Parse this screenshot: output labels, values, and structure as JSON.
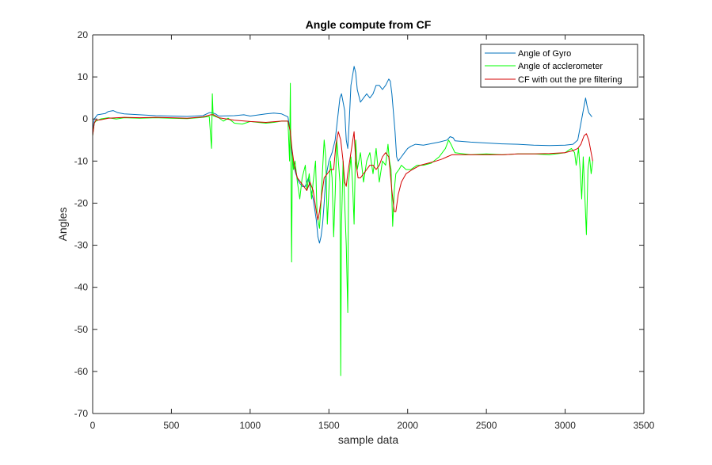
{
  "chart_data": {
    "type": "line",
    "title": "Angle compute from CF",
    "xlabel": "sample data",
    "ylabel": "Angles",
    "xlim": [
      0,
      3500
    ],
    "ylim": [
      -70,
      20
    ],
    "xticks": [
      0,
      500,
      1000,
      1500,
      2000,
      2500,
      3000,
      3500
    ],
    "yticks": [
      20,
      10,
      0,
      -10,
      -20,
      -30,
      -40,
      -50,
      -60,
      -70
    ],
    "grid": false,
    "legend_position": "top-right",
    "series": [
      {
        "name": "Angle of Gyro",
        "color": "#0072BD",
        "points": [
          [
            0,
            -3
          ],
          [
            10,
            0
          ],
          [
            30,
            1
          ],
          [
            80,
            1.3
          ],
          [
            100,
            1.8
          ],
          [
            130,
            2
          ],
          [
            160,
            1.5
          ],
          [
            200,
            1.2
          ],
          [
            300,
            1
          ],
          [
            400,
            0.8
          ],
          [
            500,
            0.7
          ],
          [
            600,
            0.6
          ],
          [
            700,
            0.8
          ],
          [
            740,
            1.5
          ],
          [
            760,
            1.5
          ],
          [
            780,
            1.2
          ],
          [
            800,
            0.7
          ],
          [
            900,
            0.8
          ],
          [
            960,
            1
          ],
          [
            1000,
            0.7
          ],
          [
            1100,
            1.2
          ],
          [
            1150,
            1.4
          ],
          [
            1200,
            1.2
          ],
          [
            1240,
            0.5
          ],
          [
            1250,
            -2
          ],
          [
            1260,
            -6
          ],
          [
            1270,
            -10
          ],
          [
            1290,
            -13
          ],
          [
            1310,
            -15
          ],
          [
            1330,
            -16
          ],
          [
            1350,
            -16
          ],
          [
            1370,
            -14
          ],
          [
            1380,
            -16
          ],
          [
            1400,
            -19
          ],
          [
            1420,
            -24
          ],
          [
            1430,
            -28
          ],
          [
            1440,
            -29.5
          ],
          [
            1450,
            -28
          ],
          [
            1460,
            -25
          ],
          [
            1470,
            -20
          ],
          [
            1480,
            -14
          ],
          [
            1500,
            -10
          ],
          [
            1520,
            -8
          ],
          [
            1540,
            -5
          ],
          [
            1555,
            0
          ],
          [
            1570,
            5
          ],
          [
            1580,
            6
          ],
          [
            1590,
            4
          ],
          [
            1600,
            2
          ],
          [
            1610,
            -5
          ],
          [
            1620,
            -7
          ],
          [
            1630,
            0
          ],
          [
            1640,
            8
          ],
          [
            1660,
            12.5
          ],
          [
            1670,
            11
          ],
          [
            1680,
            7
          ],
          [
            1700,
            4
          ],
          [
            1720,
            5
          ],
          [
            1740,
            6
          ],
          [
            1760,
            5
          ],
          [
            1780,
            6
          ],
          [
            1800,
            8
          ],
          [
            1820,
            8
          ],
          [
            1840,
            7
          ],
          [
            1860,
            8
          ],
          [
            1880,
            9.5
          ],
          [
            1890,
            9
          ],
          [
            1900,
            6
          ],
          [
            1920,
            -3
          ],
          [
            1930,
            -9
          ],
          [
            1940,
            -10
          ],
          [
            1960,
            -9
          ],
          [
            1980,
            -8
          ],
          [
            2000,
            -7
          ],
          [
            2020,
            -6.5
          ],
          [
            2050,
            -6
          ],
          [
            2100,
            -6.2
          ],
          [
            2200,
            -5.5
          ],
          [
            2250,
            -5
          ],
          [
            2270,
            -4.2
          ],
          [
            2290,
            -4.5
          ],
          [
            2300,
            -5.2
          ],
          [
            2400,
            -5.5
          ],
          [
            2500,
            -5.7
          ],
          [
            2600,
            -5.9
          ],
          [
            2700,
            -6
          ],
          [
            2800,
            -6.2
          ],
          [
            2900,
            -6.3
          ],
          [
            3000,
            -6.2
          ],
          [
            3050,
            -6
          ],
          [
            3080,
            -5
          ],
          [
            3100,
            -1
          ],
          [
            3120,
            3
          ],
          [
            3130,
            5
          ],
          [
            3140,
            3
          ],
          [
            3150,
            1.5
          ],
          [
            3170,
            0.5
          ]
        ]
      },
      {
        "name": "Angle of acclerometer",
        "color": "#00FF00",
        "points": [
          [
            0,
            -4
          ],
          [
            10,
            -1
          ],
          [
            20,
            -0.5
          ],
          [
            50,
            0
          ],
          [
            100,
            0.3
          ],
          [
            150,
            0
          ],
          [
            200,
            0.3
          ],
          [
            300,
            0.2
          ],
          [
            400,
            0.3
          ],
          [
            500,
            0.2
          ],
          [
            600,
            0.1
          ],
          [
            700,
            0.4
          ],
          [
            740,
            0.6
          ],
          [
            755,
            -7
          ],
          [
            760,
            6
          ],
          [
            765,
            0.8
          ],
          [
            800,
            0.3
          ],
          [
            830,
            -0.5
          ],
          [
            860,
            0.2
          ],
          [
            900,
            -1
          ],
          [
            950,
            -1.2
          ],
          [
            1000,
            -0.6
          ],
          [
            1050,
            -0.8
          ],
          [
            1100,
            -1
          ],
          [
            1150,
            -0.8
          ],
          [
            1200,
            -0.5
          ],
          [
            1240,
            -0.5
          ],
          [
            1250,
            -10
          ],
          [
            1255,
            8.5
          ],
          [
            1258,
            -8
          ],
          [
            1263,
            -34
          ],
          [
            1268,
            -8
          ],
          [
            1275,
            -12
          ],
          [
            1285,
            -10
          ],
          [
            1300,
            -15
          ],
          [
            1315,
            -19
          ],
          [
            1330,
            -14
          ],
          [
            1350,
            -11
          ],
          [
            1360,
            -17
          ],
          [
            1375,
            -13
          ],
          [
            1390,
            -19
          ],
          [
            1400,
            -15
          ],
          [
            1415,
            -10
          ],
          [
            1425,
            -23
          ],
          [
            1440,
            -26
          ],
          [
            1450,
            -20
          ],
          [
            1460,
            -12
          ],
          [
            1470,
            -5
          ],
          [
            1480,
            -9
          ],
          [
            1490,
            -25
          ],
          [
            1500,
            -17
          ],
          [
            1510,
            -10
          ],
          [
            1520,
            -14
          ],
          [
            1530,
            -28
          ],
          [
            1540,
            -18
          ],
          [
            1550,
            -5
          ],
          [
            1560,
            -10
          ],
          [
            1570,
            -15
          ],
          [
            1575,
            -61
          ],
          [
            1580,
            -25
          ],
          [
            1590,
            -10
          ],
          [
            1600,
            -20
          ],
          [
            1610,
            -30
          ],
          [
            1620,
            -46
          ],
          [
            1625,
            -15
          ],
          [
            1640,
            -9
          ],
          [
            1650,
            -15
          ],
          [
            1660,
            -25
          ],
          [
            1670,
            -5
          ],
          [
            1680,
            -12
          ],
          [
            1700,
            -8
          ],
          [
            1720,
            -15
          ],
          [
            1740,
            -10
          ],
          [
            1760,
            -8
          ],
          [
            1780,
            -13
          ],
          [
            1800,
            -7
          ],
          [
            1820,
            -15
          ],
          [
            1840,
            -10
          ],
          [
            1860,
            -11
          ],
          [
            1875,
            -6
          ],
          [
            1885,
            -10
          ],
          [
            1895,
            -12
          ],
          [
            1905,
            -25.5
          ],
          [
            1915,
            -17
          ],
          [
            1925,
            -13
          ],
          [
            1945,
            -12
          ],
          [
            1960,
            -11
          ],
          [
            1990,
            -12
          ],
          [
            2020,
            -12
          ],
          [
            2060,
            -11
          ],
          [
            2100,
            -11
          ],
          [
            2150,
            -10.5
          ],
          [
            2200,
            -9
          ],
          [
            2240,
            -7
          ],
          [
            2260,
            -5
          ],
          [
            2275,
            -6
          ],
          [
            2300,
            -8
          ],
          [
            2400,
            -8.5
          ],
          [
            2500,
            -8.3
          ],
          [
            2600,
            -8.5
          ],
          [
            2700,
            -8.3
          ],
          [
            2800,
            -8.3
          ],
          [
            2900,
            -8.5
          ],
          [
            3000,
            -8
          ],
          [
            3040,
            -7
          ],
          [
            3060,
            -8
          ],
          [
            3070,
            -11
          ],
          [
            3085,
            -7
          ],
          [
            3095,
            -12
          ],
          [
            3105,
            -19
          ],
          [
            3115,
            -9
          ],
          [
            3125,
            -18
          ],
          [
            3135,
            -27.5
          ],
          [
            3145,
            -12
          ],
          [
            3155,
            -9
          ],
          [
            3165,
            -13
          ],
          [
            3175,
            -10
          ]
        ]
      },
      {
        "name": "CF with out the pre filtering",
        "color": "#D40000",
        "points": [
          [
            0,
            -4
          ],
          [
            10,
            -1
          ],
          [
            20,
            -0.3
          ],
          [
            50,
            -0.2
          ],
          [
            100,
            0.2
          ],
          [
            200,
            0.4
          ],
          [
            300,
            0.3
          ],
          [
            400,
            0.4
          ],
          [
            500,
            0.3
          ],
          [
            600,
            0.2
          ],
          [
            700,
            0.5
          ],
          [
            750,
            1
          ],
          [
            770,
            1
          ],
          [
            800,
            0.3
          ],
          [
            900,
            -0.3
          ],
          [
            1000,
            -0.6
          ],
          [
            1100,
            -0.8
          ],
          [
            1200,
            -0.5
          ],
          [
            1240,
            -0.5
          ],
          [
            1255,
            -3
          ],
          [
            1265,
            -7
          ],
          [
            1280,
            -11
          ],
          [
            1300,
            -14
          ],
          [
            1320,
            -15
          ],
          [
            1340,
            -16
          ],
          [
            1360,
            -17
          ],
          [
            1380,
            -15
          ],
          [
            1400,
            -17
          ],
          [
            1420,
            -22
          ],
          [
            1430,
            -24
          ],
          [
            1440,
            -22
          ],
          [
            1455,
            -18
          ],
          [
            1470,
            -14
          ],
          [
            1490,
            -13
          ],
          [
            1510,
            -12
          ],
          [
            1530,
            -12
          ],
          [
            1545,
            -6
          ],
          [
            1560,
            -3
          ],
          [
            1575,
            -5
          ],
          [
            1590,
            -10
          ],
          [
            1600,
            -15
          ],
          [
            1610,
            -16
          ],
          [
            1620,
            -13
          ],
          [
            1640,
            -8
          ],
          [
            1660,
            -3
          ],
          [
            1670,
            -10
          ],
          [
            1685,
            -14
          ],
          [
            1700,
            -14
          ],
          [
            1720,
            -13
          ],
          [
            1740,
            -12
          ],
          [
            1760,
            -11
          ],
          [
            1780,
            -11
          ],
          [
            1800,
            -12
          ],
          [
            1820,
            -11
          ],
          [
            1840,
            -9
          ],
          [
            1860,
            -8
          ],
          [
            1880,
            -9
          ],
          [
            1900,
            -17
          ],
          [
            1915,
            -22
          ],
          [
            1925,
            -22
          ],
          [
            1940,
            -18
          ],
          [
            1960,
            -15
          ],
          [
            1990,
            -13
          ],
          [
            2030,
            -12
          ],
          [
            2080,
            -11
          ],
          [
            2130,
            -10.5
          ],
          [
            2180,
            -10
          ],
          [
            2220,
            -9.5
          ],
          [
            2250,
            -9
          ],
          [
            2280,
            -8.5
          ],
          [
            2300,
            -8.5
          ],
          [
            2400,
            -8.5
          ],
          [
            2500,
            -8.5
          ],
          [
            2600,
            -8.5
          ],
          [
            2700,
            -8.3
          ],
          [
            2800,
            -8.3
          ],
          [
            2900,
            -8.2
          ],
          [
            3000,
            -8
          ],
          [
            3050,
            -7.5
          ],
          [
            3080,
            -7
          ],
          [
            3100,
            -6
          ],
          [
            3120,
            -4
          ],
          [
            3135,
            -3.5
          ],
          [
            3150,
            -5
          ],
          [
            3165,
            -8
          ],
          [
            3175,
            -10
          ]
        ]
      }
    ]
  }
}
